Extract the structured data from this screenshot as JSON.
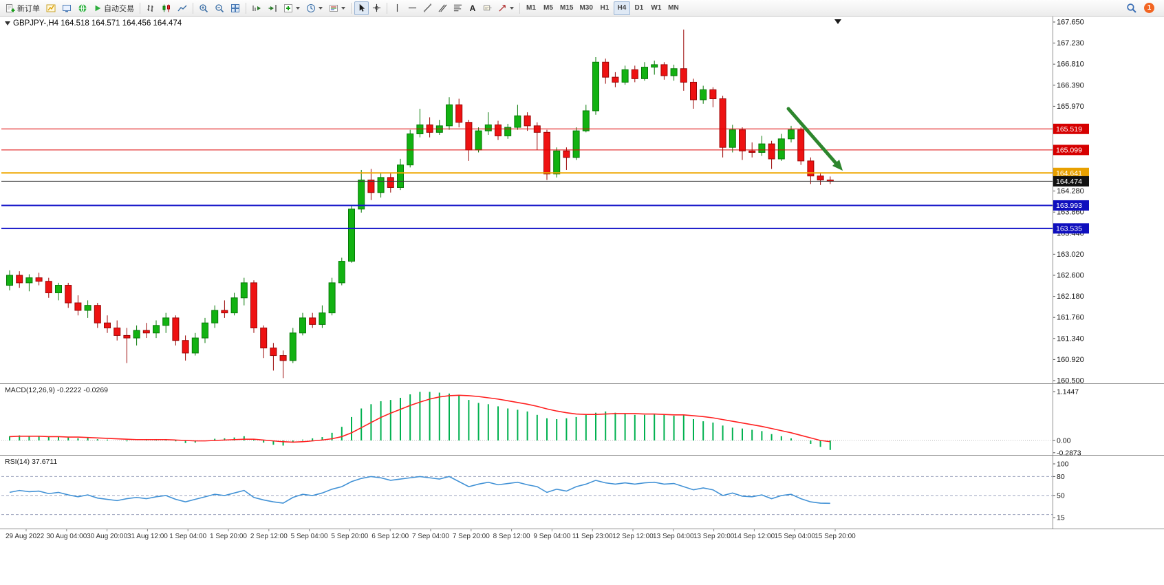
{
  "toolbar": {
    "new_order_label": "新订单",
    "autotrading_label": "自动交易",
    "text_tool_glyph": "A",
    "timeframes": [
      "M1",
      "M5",
      "M15",
      "M30",
      "H1",
      "H4",
      "D1",
      "W1",
      "MN"
    ],
    "active_timeframe": "H4",
    "notification_count": "1"
  },
  "chart": {
    "title": "GBPJPY-,H4  164.518 164.571 164.456 164.474"
  },
  "time_axis": {
    "labels": [
      "29 Aug 2022",
      "30 Aug 04:00",
      "30 Aug 20:00",
      "31 Aug 12:00",
      "1 Sep 04:00",
      "1 Sep 20:00",
      "2 Sep 12:00",
      "5 Sep 04:00",
      "5 Sep 20:00",
      "6 Sep 12:00",
      "7 Sep 04:00",
      "7 Sep 20:00",
      "8 Sep 12:00",
      "9 Sep 04:00",
      "11 Sep 23:00",
      "12 Sep 12:00",
      "13 Sep 04:00",
      "13 Sep 20:00",
      "14 Sep 12:00",
      "15 Sep 04:00",
      "15 Sep 20:00"
    ]
  },
  "chart_data": [
    {
      "type": "candlestick",
      "symbol": "GBPJPY-",
      "period": "H4",
      "open": 164.518,
      "high": 164.571,
      "low": 164.456,
      "close": 164.474,
      "last_price": 164.474,
      "ylim": [
        160.5,
        167.65
      ],
      "up_color": "#12b212",
      "up_edge": "#067806",
      "down_color": "#ee1212",
      "down_edge": "#9a0606",
      "y_ticks": [
        167.65,
        167.23,
        166.81,
        166.39,
        165.97,
        164.28,
        163.86,
        163.44,
        163.02,
        162.6,
        162.18,
        161.76,
        161.34,
        160.92,
        160.5
      ],
      "hlines": [
        {
          "price": 165.519,
          "label": "165.519",
          "color": "#dd0000",
          "badge": "#d60000",
          "width": 1
        },
        {
          "price": 165.099,
          "label": "165.099",
          "color": "#dd0000",
          "badge": "#d60000",
          "width": 1
        },
        {
          "price": 164.641,
          "label": "164.641",
          "color": "#efa700",
          "badge": "#e8a000",
          "width": 2
        },
        {
          "price": 163.993,
          "label": "163.993",
          "color": "#1414c8",
          "badge": "#0f0fbe",
          "width": 2
        },
        {
          "price": 163.535,
          "label": "163.535",
          "color": "#1414c8",
          "badge": "#0f0fbe",
          "width": 2
        },
        {
          "price": 164.474,
          "label": "164.474",
          "color": "#3a3a3a",
          "badge": "#111111",
          "width": 1
        }
      ],
      "arrow": {
        "color": "#2d862d"
      },
      "candles": [
        [
          162.4,
          162.7,
          162.3,
          162.6
        ],
        [
          162.6,
          162.68,
          162.35,
          162.45
        ],
        [
          162.45,
          162.62,
          162.28,
          162.55
        ],
        [
          162.55,
          162.65,
          162.4,
          162.48
        ],
        [
          162.48,
          162.55,
          162.15,
          162.25
        ],
        [
          162.25,
          162.45,
          162.1,
          162.4
        ],
        [
          162.4,
          162.45,
          161.95,
          162.05
        ],
        [
          162.05,
          162.2,
          161.8,
          161.9
        ],
        [
          161.9,
          162.1,
          161.75,
          162.0
        ],
        [
          162.0,
          162.05,
          161.55,
          161.65
        ],
        [
          161.65,
          161.8,
          161.45,
          161.55
        ],
        [
          161.55,
          161.7,
          161.3,
          161.4
        ],
        [
          161.4,
          161.55,
          160.85,
          161.35
        ],
        [
          161.35,
          161.6,
          161.2,
          161.5
        ],
        [
          161.5,
          161.65,
          161.35,
          161.45
        ],
        [
          161.45,
          161.7,
          161.35,
          161.6
        ],
        [
          161.6,
          161.85,
          161.45,
          161.75
        ],
        [
          161.75,
          161.8,
          161.2,
          161.3
        ],
        [
          161.3,
          161.4,
          160.9,
          161.05
        ],
        [
          161.05,
          161.45,
          161.0,
          161.35
        ],
        [
          161.35,
          161.75,
          161.25,
          161.65
        ],
        [
          161.65,
          162.0,
          161.55,
          161.9
        ],
        [
          161.9,
          162.1,
          161.75,
          161.85
        ],
        [
          161.85,
          162.25,
          161.8,
          162.15
        ],
        [
          162.15,
          162.55,
          162.0,
          162.45
        ],
        [
          162.45,
          162.5,
          161.45,
          161.55
        ],
        [
          161.55,
          161.6,
          160.95,
          161.15
        ],
        [
          161.15,
          161.25,
          160.7,
          161.0
        ],
        [
          161.0,
          161.1,
          160.55,
          160.9
        ],
        [
          160.9,
          161.55,
          160.85,
          161.45
        ],
        [
          161.45,
          161.85,
          161.4,
          161.75
        ],
        [
          161.75,
          161.85,
          161.55,
          161.62
        ],
        [
          161.62,
          162.0,
          161.55,
          161.85
        ],
        [
          161.85,
          162.55,
          161.8,
          162.45
        ],
        [
          162.45,
          162.95,
          162.4,
          162.88
        ],
        [
          162.88,
          163.98,
          162.85,
          163.92
        ],
        [
          163.92,
          164.7,
          163.85,
          164.5
        ],
        [
          164.5,
          164.72,
          164.1,
          164.25
        ],
        [
          164.25,
          164.65,
          164.15,
          164.55
        ],
        [
          164.55,
          164.65,
          164.25,
          164.35
        ],
        [
          164.35,
          164.92,
          164.3,
          164.8
        ],
        [
          164.8,
          165.5,
          164.75,
          165.42
        ],
        [
          165.42,
          165.92,
          165.35,
          165.6
        ],
        [
          165.6,
          165.75,
          165.35,
          165.45
        ],
        [
          165.45,
          165.7,
          165.4,
          165.58
        ],
        [
          165.58,
          166.15,
          165.5,
          166.0
        ],
        [
          166.0,
          166.12,
          165.55,
          165.65
        ],
        [
          165.65,
          165.7,
          164.88,
          165.1
        ],
        [
          165.1,
          165.55,
          165.05,
          165.48
        ],
        [
          165.48,
          165.85,
          165.4,
          165.6
        ],
        [
          165.6,
          165.68,
          165.3,
          165.38
        ],
        [
          165.38,
          165.62,
          165.32,
          165.55
        ],
        [
          165.55,
          166.0,
          165.5,
          165.78
        ],
        [
          165.78,
          165.85,
          165.48,
          165.58
        ],
        [
          165.58,
          165.65,
          165.1,
          165.45
        ],
        [
          165.45,
          165.5,
          164.5,
          164.62
        ],
        [
          164.62,
          165.15,
          164.55,
          165.08
        ],
        [
          165.08,
          165.15,
          164.7,
          164.95
        ],
        [
          164.95,
          165.55,
          164.9,
          165.48
        ],
        [
          165.48,
          166.0,
          165.45,
          165.88
        ],
        [
          165.88,
          166.95,
          165.8,
          166.85
        ],
        [
          166.85,
          166.92,
          166.42,
          166.55
        ],
        [
          166.55,
          166.65,
          166.35,
          166.45
        ],
        [
          166.45,
          166.78,
          166.4,
          166.7
        ],
        [
          166.7,
          166.78,
          166.45,
          166.52
        ],
        [
          166.52,
          166.85,
          166.48,
          166.75
        ],
        [
          166.75,
          166.88,
          166.6,
          166.8
        ],
        [
          166.8,
          166.85,
          166.5,
          166.58
        ],
        [
          166.58,
          166.8,
          166.48,
          166.72
        ],
        [
          166.72,
          167.5,
          166.28,
          166.45
        ],
        [
          166.45,
          166.52,
          165.92,
          166.1
        ],
        [
          166.1,
          166.38,
          166.02,
          166.3
        ],
        [
          166.3,
          166.35,
          165.95,
          166.12
        ],
        [
          166.12,
          166.18,
          164.95,
          165.15
        ],
        [
          165.15,
          165.6,
          165.05,
          165.5
        ],
        [
          165.5,
          165.55,
          164.9,
          165.08
        ],
        [
          165.08,
          165.25,
          164.95,
          165.05
        ],
        [
          165.05,
          165.38,
          164.98,
          165.22
        ],
        [
          165.22,
          165.28,
          164.72,
          164.92
        ],
        [
          164.92,
          165.42,
          164.88,
          165.32
        ],
        [
          165.32,
          165.58,
          165.25,
          165.5
        ],
        [
          165.5,
          165.55,
          164.8,
          164.88
        ],
        [
          164.88,
          164.95,
          164.42,
          164.58
        ],
        [
          164.58,
          164.65,
          164.4,
          164.5
        ],
        [
          164.5,
          164.57,
          164.42,
          164.474
        ]
      ]
    },
    {
      "type": "bar",
      "name": "MACD(12,26,9)",
      "label": "MACD(12,26,9) -0.2222 -0.0269",
      "value": -0.2222,
      "signal_value": -0.0269,
      "bar_color": "#00b14f",
      "signal_color": "#ff2020",
      "y_ticks": [
        {
          "v": 1.1447,
          "label": "1.1447"
        },
        {
          "v": 0,
          "label": "0.00"
        },
        {
          "v": -0.2873,
          "label": "-0.2873"
        }
      ],
      "values": [
        0.1,
        0.12,
        0.11,
        0.1,
        0.08,
        0.09,
        0.07,
        0.05,
        0.06,
        0.03,
        0.02,
        0.0,
        -0.02,
        0.0,
        0.01,
        0.02,
        0.03,
        -0.02,
        -0.06,
        -0.05,
        0.0,
        0.04,
        0.05,
        0.07,
        0.1,
        0.02,
        -0.05,
        -0.1,
        -0.12,
        -0.05,
        0.02,
        0.05,
        0.08,
        0.18,
        0.32,
        0.55,
        0.75,
        0.85,
        0.92,
        0.95,
        1.0,
        1.08,
        1.14,
        1.14,
        1.12,
        1.1,
        1.05,
        0.95,
        0.88,
        0.85,
        0.8,
        0.75,
        0.72,
        0.68,
        0.6,
        0.52,
        0.5,
        0.52,
        0.55,
        0.6,
        0.65,
        0.68,
        0.65,
        0.62,
        0.6,
        0.6,
        0.62,
        0.6,
        0.58,
        0.6,
        0.5,
        0.45,
        0.42,
        0.35,
        0.3,
        0.28,
        0.25,
        0.22,
        0.15,
        0.1,
        0.05,
        0.0,
        -0.08,
        -0.15,
        -0.2222
      ],
      "signal": [
        0.09,
        0.1,
        0.1,
        0.1,
        0.09,
        0.09,
        0.08,
        0.08,
        0.07,
        0.06,
        0.05,
        0.04,
        0.03,
        0.02,
        0.02,
        0.02,
        0.02,
        0.01,
        0.0,
        -0.01,
        -0.01,
        0.0,
        0.01,
        0.02,
        0.03,
        0.03,
        0.01,
        -0.01,
        -0.03,
        -0.04,
        -0.03,
        -0.01,
        0.01,
        0.04,
        0.09,
        0.18,
        0.3,
        0.42,
        0.54,
        0.64,
        0.73,
        0.82,
        0.9,
        0.97,
        1.02,
        1.05,
        1.06,
        1.05,
        1.03,
        1.0,
        0.97,
        0.93,
        0.89,
        0.85,
        0.8,
        0.74,
        0.69,
        0.65,
        0.62,
        0.61,
        0.61,
        0.62,
        0.63,
        0.63,
        0.63,
        0.62,
        0.62,
        0.61,
        0.6,
        0.6,
        0.58,
        0.56,
        0.53,
        0.49,
        0.45,
        0.41,
        0.37,
        0.33,
        0.28,
        0.23,
        0.18,
        0.12,
        0.06,
        0.0,
        -0.0269
      ]
    },
    {
      "type": "line",
      "name": "RSI(14)",
      "label": "RSI(14) 37.6711",
      "value": 37.6711,
      "line_color": "#4292d6",
      "levels": [
        80,
        50,
        20
      ],
      "y_ticks": [
        {
          "v": 100,
          "label": "100"
        },
        {
          "v": 80,
          "label": "80"
        },
        {
          "v": 50,
          "label": "50"
        },
        {
          "v": 15,
          "label": "15"
        }
      ],
      "values": [
        55,
        58,
        56,
        57,
        53,
        55,
        51,
        48,
        51,
        46,
        44,
        42,
        45,
        47,
        45,
        48,
        50,
        44,
        40,
        44,
        48,
        52,
        50,
        54,
        58,
        47,
        43,
        40,
        38,
        47,
        52,
        50,
        54,
        60,
        64,
        72,
        77,
        80,
        78,
        74,
        76,
        78,
        80,
        78,
        76,
        80,
        72,
        64,
        68,
        71,
        67,
        69,
        71,
        67,
        64,
        55,
        60,
        57,
        64,
        68,
        74,
        70,
        68,
        70,
        68,
        70,
        71,
        68,
        69,
        64,
        59,
        62,
        59,
        50,
        54,
        49,
        48,
        51,
        45,
        50,
        52,
        45,
        40,
        38,
        37.6711
      ]
    }
  ]
}
